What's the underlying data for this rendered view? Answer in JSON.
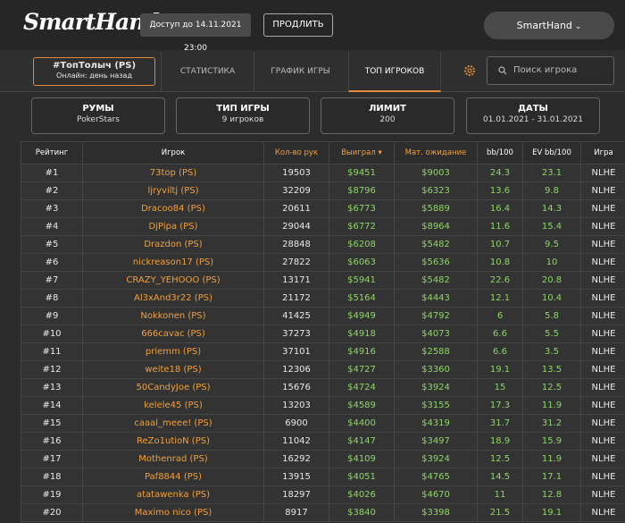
{
  "header": {
    "logo": "SmartHand",
    "access": "Доступ до 14.11.2021 23:00",
    "extend_button": "ПРОДЛИТЬ",
    "user": "SmartHand"
  },
  "nav": {
    "profile_name": "#ТопТолыч (PS)",
    "profile_status": "Онлайн: день назад",
    "tabs": [
      "СТАТИСТИКА",
      "ГРАФИК ИГРЫ",
      "ТОП ИГРОКОВ"
    ],
    "active_tab": 2,
    "search_placeholder": "Поиск игрока"
  },
  "filters": [
    {
      "label": "РУМЫ",
      "value": "PokerStars"
    },
    {
      "label": "ТИП ИГРЫ",
      "value": "9 игроков"
    },
    {
      "label": "ЛИМИТ",
      "value": "200"
    },
    {
      "label": "ДАТЫ",
      "value": "01.01.2021 - 31.01.2021"
    }
  ],
  "table": {
    "columns": [
      "Рейтинг",
      "Игрок",
      "Кол-во рук",
      "Выиграл",
      "Мат. ожидание",
      "bb/100",
      "EV bb/100",
      "Игра"
    ],
    "rows": [
      [
        "#1",
        "73top (PS)",
        "19503",
        "$9451",
        "$9003",
        "24.3",
        "23.1",
        "NLHE"
      ],
      [
        "#2",
        "ljryviltj (PS)",
        "32209",
        "$8796",
        "$6323",
        "13.6",
        "9.8",
        "NLHE"
      ],
      [
        "#3",
        "Dracoo84 (PS)",
        "20611",
        "$6773",
        "$5889",
        "16.4",
        "14.3",
        "NLHE"
      ],
      [
        "#4",
        "DjPipa (PS)",
        "29044",
        "$6772",
        "$8964",
        "11.6",
        "15.4",
        "NLHE"
      ],
      [
        "#5",
        "Drazdon (PS)",
        "28848",
        "$6208",
        "$5482",
        "10.7",
        "9.5",
        "NLHE"
      ],
      [
        "#6",
        "nickreason17 (PS)",
        "27822",
        "$6063",
        "$5636",
        "10.8",
        "10",
        "NLHE"
      ],
      [
        "#7",
        "CRAZY_YEHOOO (PS)",
        "13171",
        "$5941",
        "$5482",
        "22.6",
        "20.8",
        "NLHE"
      ],
      [
        "#8",
        "Al3xAnd3r22 (PS)",
        "21172",
        "$5164",
        "$4443",
        "12.1",
        "10.4",
        "NLHE"
      ],
      [
        "#9",
        "Nokkonen (PS)",
        "41425",
        "$4949",
        "$4792",
        "6",
        "5.8",
        "NLHE"
      ],
      [
        "#10",
        "666cavac (PS)",
        "37273",
        "$4918",
        "$4073",
        "6.6",
        "5.5",
        "NLHE"
      ],
      [
        "#11",
        "priemm (PS)",
        "37101",
        "$4916",
        "$2588",
        "6.6",
        "3.5",
        "NLHE"
      ],
      [
        "#12",
        "weite18 (PS)",
        "12306",
        "$4727",
        "$3360",
        "19.1",
        "13.5",
        "NLHE"
      ],
      [
        "#13",
        "50CandyJoe (PS)",
        "15676",
        "$4724",
        "$3924",
        "15",
        "12.5",
        "NLHE"
      ],
      [
        "#14",
        "kelele45 (PS)",
        "13203",
        "$4589",
        "$3155",
        "17.3",
        "11.9",
        "NLHE"
      ],
      [
        "#15",
        "caaal_meee! (PS)",
        "6900",
        "$4400",
        "$4319",
        "31.7",
        "31.2",
        "NLHE"
      ],
      [
        "#16",
        "ReZo1utioN (PS)",
        "11042",
        "$4147",
        "$3497",
        "18.9",
        "15.9",
        "NLHE"
      ],
      [
        "#17",
        "Mothenrad (PS)",
        "16292",
        "$4109",
        "$3924",
        "12.5",
        "11.9",
        "NLHE"
      ],
      [
        "#18",
        "Paf8844 (PS)",
        "13915",
        "$4051",
        "$4765",
        "14.5",
        "17.1",
        "NLHE"
      ],
      [
        "#19",
        "atatawenka (PS)",
        "18297",
        "$4026",
        "$4670",
        "11",
        "12.8",
        "NLHE"
      ],
      [
        "#20",
        "Maximo nico (PS)",
        "8917",
        "$3840",
        "$3398",
        "21.5",
        "19.1",
        "NLHE"
      ]
    ]
  }
}
